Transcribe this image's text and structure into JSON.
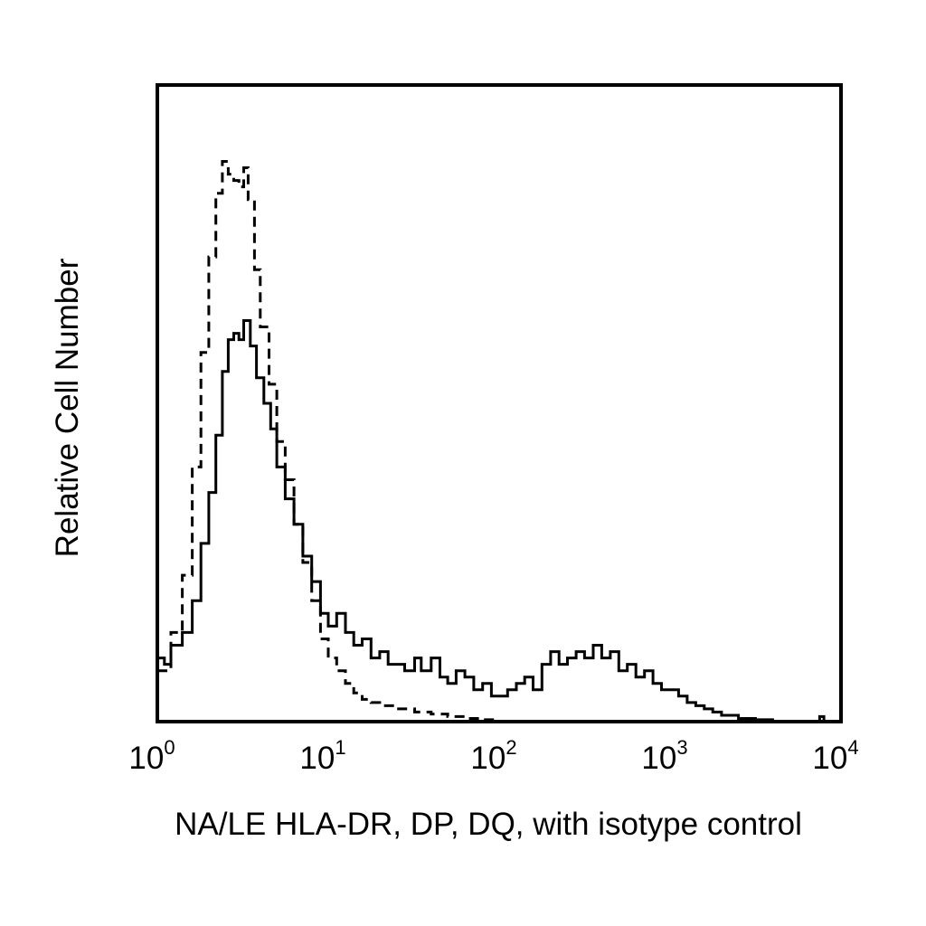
{
  "chart_data": {
    "type": "line",
    "title": "",
    "xlabel": "NA/LE HLA-DR, DP, DQ, with isotype control",
    "ylabel": "Relative Cell Number",
    "x_scale": "log",
    "xlim": [
      1,
      10000
    ],
    "ylim": [
      0,
      100
    ],
    "grid": false,
    "legend": "none",
    "x_ticks": [
      {
        "value": 1,
        "base": "10",
        "exp": "0"
      },
      {
        "value": 10,
        "base": "10",
        "exp": "1"
      },
      {
        "value": 100,
        "base": "10",
        "exp": "2"
      },
      {
        "value": 1000,
        "base": "10",
        "exp": "3"
      },
      {
        "value": 10000,
        "base": "10",
        "exp": "4"
      }
    ],
    "series": [
      {
        "style": "dashed",
        "color": "#000000",
        "points": [
          [
            1.0,
            8
          ],
          [
            1.2,
            14
          ],
          [
            1.4,
            23
          ],
          [
            1.6,
            40
          ],
          [
            1.8,
            58
          ],
          [
            2.0,
            73
          ],
          [
            2.2,
            83
          ],
          [
            2.4,
            88
          ],
          [
            2.6,
            86
          ],
          [
            2.8,
            85
          ],
          [
            3.0,
            84
          ],
          [
            3.2,
            87
          ],
          [
            3.4,
            82
          ],
          [
            3.7,
            71
          ],
          [
            4.0,
            62
          ],
          [
            4.5,
            53
          ],
          [
            5.0,
            44
          ],
          [
            5.6,
            38
          ],
          [
            6.3,
            31
          ],
          [
            7.1,
            25
          ],
          [
            8.0,
            19
          ],
          [
            9.0,
            13
          ],
          [
            10.0,
            10
          ],
          [
            11.2,
            8
          ],
          [
            12.6,
            6
          ],
          [
            14.1,
            4.5
          ],
          [
            15.8,
            3.5
          ],
          [
            17.8,
            3
          ],
          [
            20,
            2.5
          ],
          [
            25,
            2
          ],
          [
            32,
            1.5
          ],
          [
            40,
            1.2
          ],
          [
            50,
            0.8
          ],
          [
            63,
            0.5
          ],
          [
            80,
            0.3
          ],
          [
            100,
            0
          ]
        ]
      },
      {
        "style": "solid",
        "color": "#000000",
        "points": [
          [
            1.0,
            10
          ],
          [
            1.1,
            9
          ],
          [
            1.2,
            12
          ],
          [
            1.4,
            14
          ],
          [
            1.6,
            19
          ],
          [
            1.8,
            28
          ],
          [
            2.0,
            36
          ],
          [
            2.2,
            45
          ],
          [
            2.4,
            55
          ],
          [
            2.6,
            60
          ],
          [
            2.8,
            61
          ],
          [
            3.0,
            60
          ],
          [
            3.2,
            63
          ],
          [
            3.5,
            59
          ],
          [
            3.8,
            54
          ],
          [
            4.2,
            50
          ],
          [
            4.6,
            46
          ],
          [
            5.0,
            40
          ],
          [
            5.6,
            35
          ],
          [
            6.3,
            31
          ],
          [
            7.1,
            26
          ],
          [
            8.0,
            22
          ],
          [
            9.0,
            17
          ],
          [
            10.0,
            15
          ],
          [
            11.2,
            17
          ],
          [
            12.6,
            14
          ],
          [
            14.1,
            12
          ],
          [
            15.8,
            13
          ],
          [
            17.8,
            10
          ],
          [
            20,
            11
          ],
          [
            22.4,
            9
          ],
          [
            25,
            9
          ],
          [
            28,
            8
          ],
          [
            32,
            10
          ],
          [
            35,
            8
          ],
          [
            40,
            10
          ],
          [
            45,
            7
          ],
          [
            50,
            6
          ],
          [
            56,
            8
          ],
          [
            63,
            7
          ],
          [
            71,
            5
          ],
          [
            80,
            6
          ],
          [
            90,
            4
          ],
          [
            100,
            4
          ],
          [
            112,
            5
          ],
          [
            126,
            6
          ],
          [
            141,
            7
          ],
          [
            158,
            5
          ],
          [
            178,
            9
          ],
          [
            200,
            11
          ],
          [
            224,
            9
          ],
          [
            251,
            10
          ],
          [
            282,
            11
          ],
          [
            316,
            10
          ],
          [
            355,
            12
          ],
          [
            398,
            10
          ],
          [
            447,
            11
          ],
          [
            501,
            8
          ],
          [
            562,
            9
          ],
          [
            631,
            7
          ],
          [
            708,
            8
          ],
          [
            794,
            6
          ],
          [
            891,
            5
          ],
          [
            1000,
            5
          ],
          [
            1122,
            4
          ],
          [
            1259,
            3
          ],
          [
            1413,
            2.5
          ],
          [
            1585,
            2
          ],
          [
            1778,
            1.5
          ],
          [
            2000,
            1
          ],
          [
            2512,
            0.5
          ],
          [
            3162,
            0.3
          ],
          [
            3981,
            0
          ],
          [
            6000,
            0
          ],
          [
            7079,
            0
          ],
          [
            7500,
            0.8
          ],
          [
            7943,
            0
          ]
        ]
      }
    ]
  }
}
